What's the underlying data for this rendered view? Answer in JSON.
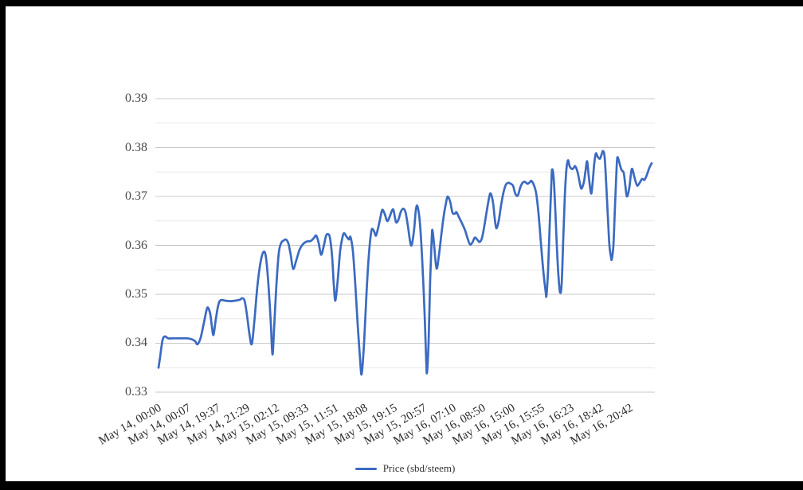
{
  "colors": {
    "frame": "#000000",
    "background": "#ffffff",
    "line": "#3b6ac1",
    "grid_major": "#c8c8c8",
    "grid_minor": "#e8e8e8",
    "y_label_text": "#4a4a4a",
    "x_label_text": "#2b2b2b"
  },
  "legend": {
    "label": "Price (sbd/steem)"
  },
  "chart_data": {
    "type": "line",
    "title": "",
    "xlabel": "",
    "ylabel": "",
    "ylim": [
      0.33,
      0.39
    ],
    "grid": {
      "major_step": 0.01,
      "minor_step": 0.005,
      "vertical_gridlines": false
    },
    "legend_position": "bottom-center",
    "y_tick_labels": [
      "0.39",
      "0.38",
      "0.37",
      "0.36",
      "0.35",
      "0.34",
      "0.33"
    ],
    "y_tick_values": [
      0.39,
      0.38,
      0.37,
      0.36,
      0.35,
      0.34,
      0.33
    ],
    "x_tick_labels": [
      "May 14, 00:00",
      "May 14, 00:07",
      "May 14, 19:37",
      "May 14, 21:29",
      "May 15, 02:12",
      "May 15, 09:33",
      "May 15, 11:51",
      "May 15, 18:08",
      "May 15, 19:15",
      "May 15, 20:57",
      "May 16, 07:10",
      "May 16, 08:50",
      "May 16, 15:00",
      "May 16, 15:55",
      "May 16, 16:23",
      "May 16, 18:42",
      "May 16, 20:42"
    ],
    "series": [
      {
        "name": "Price (sbd/steem)",
        "color": "#3b6ac1",
        "points": [
          [
            199,
            0.335
          ],
          [
            201,
            0.3372
          ],
          [
            204,
            0.3406
          ],
          [
            207,
            0.3414
          ],
          [
            211,
            0.341
          ],
          [
            217,
            0.341
          ],
          [
            223,
            0.341
          ],
          [
            229,
            0.341
          ],
          [
            235,
            0.341
          ],
          [
            241,
            0.3408
          ],
          [
            245,
            0.3404
          ],
          [
            248,
            0.3398
          ],
          [
            252,
            0.3412
          ],
          [
            256,
            0.3442
          ],
          [
            259,
            0.3466
          ],
          [
            261,
            0.3473
          ],
          [
            264,
            0.3459
          ],
          [
            266,
            0.3434
          ],
          [
            268,
            0.3417
          ],
          [
            271,
            0.345
          ],
          [
            274,
            0.3478
          ],
          [
            277,
            0.3488
          ],
          [
            283,
            0.3487
          ],
          [
            289,
            0.3486
          ],
          [
            295,
            0.3487
          ],
          [
            301,
            0.3489
          ],
          [
            304,
            0.3492
          ],
          [
            307,
            0.3487
          ],
          [
            310,
            0.3458
          ],
          [
            313,
            0.342
          ],
          [
            316,
            0.3398
          ],
          [
            319,
            0.344
          ],
          [
            323,
            0.3515
          ],
          [
            327,
            0.3565
          ],
          [
            331,
            0.3587
          ],
          [
            334,
            0.3574
          ],
          [
            337,
            0.3519
          ],
          [
            340,
            0.344
          ],
          [
            342,
            0.3377
          ],
          [
            344,
            0.3428
          ],
          [
            347,
            0.352
          ],
          [
            350,
            0.3585
          ],
          [
            353,
            0.3605
          ],
          [
            356,
            0.361
          ],
          [
            359,
            0.3612
          ],
          [
            362,
            0.3604
          ],
          [
            365,
            0.358
          ],
          [
            368,
            0.3552
          ],
          [
            372,
            0.357
          ],
          [
            376,
            0.3591
          ],
          [
            380,
            0.3602
          ],
          [
            385,
            0.3608
          ],
          [
            390,
            0.3609
          ],
          [
            394,
            0.3615
          ],
          [
            397,
            0.362
          ],
          [
            400,
            0.3605
          ],
          [
            403,
            0.3581
          ],
          [
            406,
            0.3596
          ],
          [
            409,
            0.3618
          ],
          [
            411,
            0.3623
          ],
          [
            414,
            0.3617
          ],
          [
            417,
            0.3575
          ],
          [
            419,
            0.352
          ],
          [
            421,
            0.3487
          ],
          [
            424,
            0.353
          ],
          [
            427,
            0.3589
          ],
          [
            430,
            0.3617
          ],
          [
            432,
            0.3625
          ],
          [
            435,
            0.3618
          ],
          [
            438,
            0.3612
          ],
          [
            440,
            0.3617
          ],
          [
            443,
            0.3588
          ],
          [
            446,
            0.352
          ],
          [
            449,
            0.3438
          ],
          [
            452,
            0.3367
          ],
          [
            454,
            0.3337
          ],
          [
            457,
            0.34
          ],
          [
            460,
            0.35
          ],
          [
            463,
            0.358
          ],
          [
            466,
            0.3628
          ],
          [
            468,
            0.3633
          ],
          [
            470,
            0.3627
          ],
          [
            472,
            0.362
          ],
          [
            475,
            0.3638
          ],
          [
            478,
            0.3661
          ],
          [
            480,
            0.3673
          ],
          [
            483,
            0.3664
          ],
          [
            486,
            0.365
          ],
          [
            489,
            0.3658
          ],
          [
            492,
            0.3671
          ],
          [
            494,
            0.3672
          ],
          [
            497,
            0.3648
          ],
          [
            500,
            0.3652
          ],
          [
            503,
            0.3668
          ],
          [
            506,
            0.3675
          ],
          [
            509,
            0.3668
          ],
          [
            512,
            0.364
          ],
          [
            515,
            0.3606
          ],
          [
            517,
            0.3602
          ],
          [
            520,
            0.3635
          ],
          [
            522,
            0.3672
          ],
          [
            524,
            0.368
          ],
          [
            527,
            0.3648
          ],
          [
            530,
            0.357
          ],
          [
            533,
            0.346
          ],
          [
            535,
            0.3365
          ],
          [
            536,
            0.334
          ],
          [
            538,
            0.3402
          ],
          [
            540,
            0.353
          ],
          [
            542,
            0.3618
          ],
          [
            543,
            0.363
          ],
          [
            545,
            0.36
          ],
          [
            548,
            0.3553
          ],
          [
            551,
            0.358
          ],
          [
            554,
            0.3622
          ],
          [
            557,
            0.366
          ],
          [
            560,
            0.3688
          ],
          [
            562,
            0.37
          ],
          [
            565,
            0.369
          ],
          [
            568,
            0.3667
          ],
          [
            571,
            0.3665
          ],
          [
            573,
            0.3668
          ],
          [
            576,
            0.3658
          ],
          [
            580,
            0.3645
          ],
          [
            584,
            0.363
          ],
          [
            587,
            0.3614
          ],
          [
            590,
            0.3602
          ],
          [
            593,
            0.3606
          ],
          [
            596,
            0.3616
          ],
          [
            599,
            0.3612
          ],
          [
            602,
            0.3607
          ],
          [
            605,
            0.3615
          ],
          [
            608,
            0.364
          ],
          [
            611,
            0.367
          ],
          [
            614,
            0.3698
          ],
          [
            616,
            0.3706
          ],
          [
            619,
            0.3686
          ],
          [
            621,
            0.3656
          ],
          [
            623,
            0.3635
          ],
          [
            626,
            0.365
          ],
          [
            629,
            0.3682
          ],
          [
            632,
            0.3708
          ],
          [
            635,
            0.3724
          ],
          [
            638,
            0.3728
          ],
          [
            641,
            0.3726
          ],
          [
            644,
            0.3722
          ],
          [
            647,
            0.3705
          ],
          [
            650,
            0.3702
          ],
          [
            653,
            0.3718
          ],
          [
            656,
            0.3728
          ],
          [
            659,
            0.373
          ],
          [
            662,
            0.3726
          ],
          [
            665,
            0.3729
          ],
          [
            667,
            0.3732
          ],
          [
            670,
            0.3724
          ],
          [
            673,
            0.3707
          ],
          [
            676,
            0.3665
          ],
          [
            679,
            0.3605
          ],
          [
            682,
            0.3548
          ],
          [
            685,
            0.3505
          ],
          [
            686,
            0.3498
          ],
          [
            688,
            0.355
          ],
          [
            690,
            0.364
          ],
          [
            692,
            0.3722
          ],
          [
            693,
            0.3755
          ],
          [
            695,
            0.3738
          ],
          [
            697,
            0.3675
          ],
          [
            699,
            0.3598
          ],
          [
            701,
            0.3538
          ],
          [
            703,
            0.3504
          ],
          [
            705,
            0.352
          ],
          [
            707,
            0.361
          ],
          [
            709,
            0.37
          ],
          [
            711,
            0.3755
          ],
          [
            713,
            0.3774
          ],
          [
            715,
            0.3762
          ],
          [
            718,
            0.3756
          ],
          [
            720,
            0.3758
          ],
          [
            722,
            0.3762
          ],
          [
            725,
            0.375
          ],
          [
            728,
            0.3726
          ],
          [
            730,
            0.3716
          ],
          [
            733,
            0.373
          ],
          [
            735,
            0.3752
          ],
          [
            737,
            0.3772
          ],
          [
            739,
            0.3742
          ],
          [
            742,
            0.3706
          ],
          [
            744,
            0.373
          ],
          [
            746,
            0.3768
          ],
          [
            748,
            0.3788
          ],
          [
            750,
            0.3782
          ],
          [
            753,
            0.3777
          ],
          [
            755,
            0.3785
          ],
          [
            757,
            0.3793
          ],
          [
            759,
            0.378
          ],
          [
            761,
            0.3725
          ],
          [
            763,
            0.366
          ],
          [
            765,
            0.36
          ],
          [
            767,
            0.3576
          ],
          [
            768,
            0.3572
          ],
          [
            770,
            0.36
          ],
          [
            772,
            0.368
          ],
          [
            774,
            0.3758
          ],
          [
            775,
            0.378
          ],
          [
            777,
            0.3772
          ],
          [
            780,
            0.3755
          ],
          [
            783,
            0.3748
          ],
          [
            785,
            0.3722
          ],
          [
            787,
            0.37
          ],
          [
            790,
            0.3718
          ],
          [
            793,
            0.3756
          ],
          [
            796,
            0.3742
          ],
          [
            798,
            0.373
          ],
          [
            800,
            0.3722
          ],
          [
            803,
            0.3728
          ],
          [
            806,
            0.3736
          ],
          [
            809,
            0.3734
          ],
          [
            812,
            0.3744
          ],
          [
            815,
            0.3758
          ],
          [
            818,
            0.3768
          ]
        ]
      }
    ]
  }
}
